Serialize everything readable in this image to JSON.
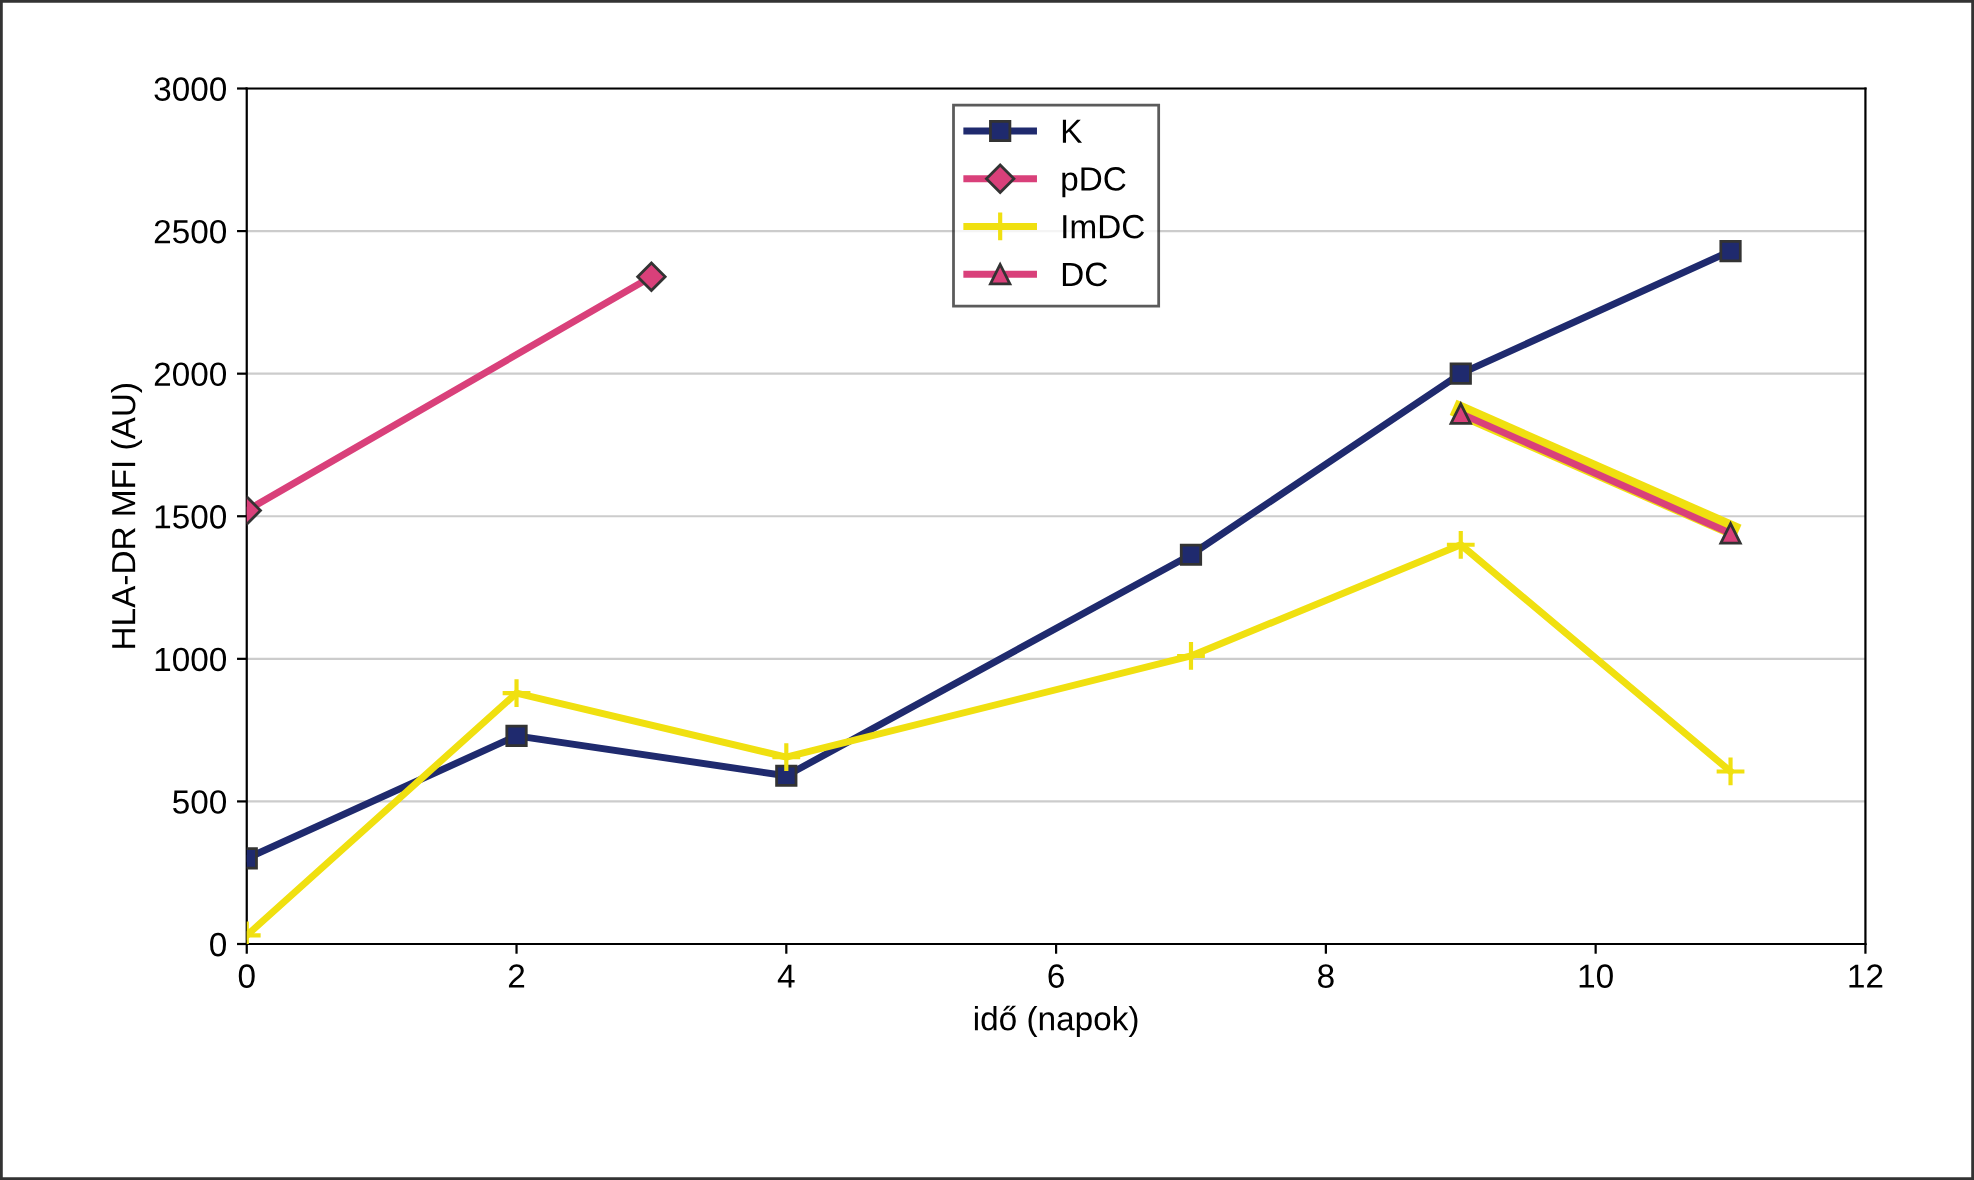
{
  "chart_data": {
    "type": "line",
    "xlabel": "idő (napok)",
    "ylabel": "HLA-DR MFI (AU)",
    "xlim": [
      0,
      12
    ],
    "xticks": [
      0,
      2,
      4,
      6,
      8,
      10,
      12
    ],
    "ylim": [
      0,
      3000
    ],
    "yticks": [
      0,
      500,
      1000,
      1500,
      2000,
      2500,
      3000
    ],
    "grid": "y",
    "legend": "top",
    "line_style": "solid",
    "series": [
      {
        "name": "K",
        "color": "#1f2a6e",
        "marker": "square",
        "x": [
          0,
          2,
          4,
          7,
          9,
          11
        ],
        "values": [
          300,
          730,
          590,
          1365,
          2000,
          2430
        ]
      },
      {
        "name": "pDC",
        "color": "#d9407a",
        "marker": "diamond",
        "x": [
          0,
          3
        ],
        "values": [
          1520,
          2340
        ]
      },
      {
        "name": "ImDC",
        "color": "#f0e010",
        "marker": "cross",
        "x": [
          0,
          2,
          4,
          7,
          9,
          11
        ],
        "values": [
          30,
          880,
          655,
          1010,
          1400,
          605
        ]
      },
      {
        "color": "#f0e010",
        "marker": "none",
        "x": [
          9,
          11
        ],
        "values": [
          1870,
          1455
        ]
      },
      {
        "name": "DC",
        "color": "#d9407a",
        "marker": "triangle",
        "x": [
          9,
          11
        ],
        "values": [
          1860,
          1440
        ]
      }
    ]
  }
}
